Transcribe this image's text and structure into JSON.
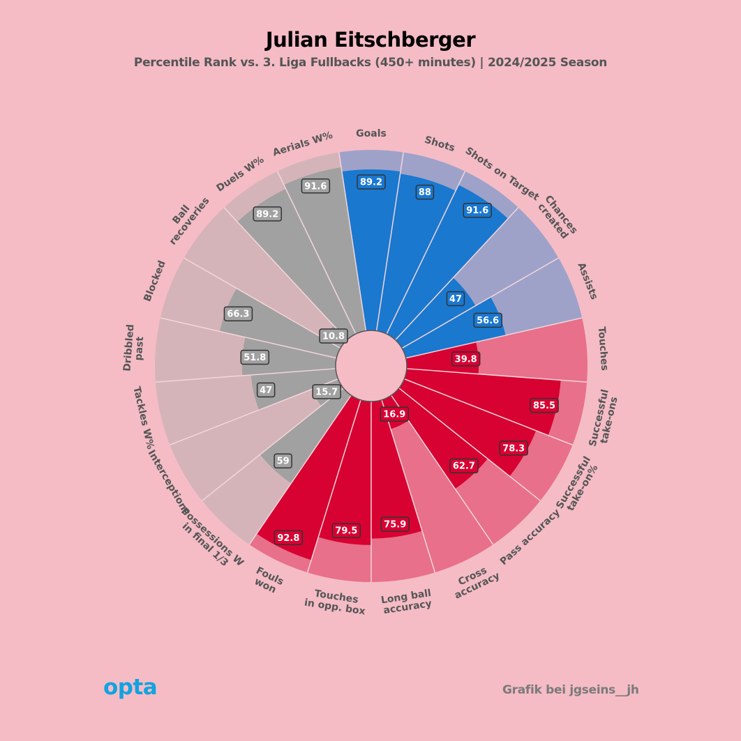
{
  "header": {
    "title": "Julian Eitschberger",
    "subtitle": "Percentile Rank vs. 3. Liga Fullbacks (450+ minutes) | 2024/2025 Season"
  },
  "footer": {
    "logo_text": "opta",
    "credit": "Grafik bei jgseins__jh"
  },
  "colors": {
    "background": "#f5bcc6",
    "attacking_bar": "#1a78cf",
    "attacking_bg": "#9ea2c9",
    "possession_bar": "#d70232",
    "possession_bg": "#e8708a",
    "defending_bar": "#a1a1a1",
    "defending_bg": "#d5b4b9"
  },
  "chart_data": {
    "type": "polar_bar",
    "title": "Julian Eitschberger",
    "subtitle": "Percentile Rank vs. 3. Liga Fullbacks (450+ minutes) | 2024/2025 Season",
    "rlim": [
      0,
      100
    ],
    "categories": [
      {
        "label": [
          "Goals"
        ],
        "value": 89.2,
        "group": "attacking"
      },
      {
        "label": [
          "Shots"
        ],
        "value": 88,
        "group": "attacking"
      },
      {
        "label": [
          "Shots on Target"
        ],
        "value": 91.6,
        "group": "attacking"
      },
      {
        "label": [
          "Chances",
          "created"
        ],
        "value": 47,
        "group": "attacking"
      },
      {
        "label": [
          "Assists"
        ],
        "value": 56.6,
        "group": "attacking"
      },
      {
        "label": [
          "Touches"
        ],
        "value": 39.8,
        "group": "possession"
      },
      {
        "label": [
          "Successful",
          "take-ons"
        ],
        "value": 85.5,
        "group": "possession"
      },
      {
        "label": [
          "Successful",
          "take-on%"
        ],
        "value": 78.3,
        "group": "possession"
      },
      {
        "label": [
          "Pass accuracy"
        ],
        "value": 62.7,
        "group": "possession"
      },
      {
        "label": [
          "Cross",
          "accuracy"
        ],
        "value": 16.9,
        "group": "possession"
      },
      {
        "label": [
          "Long ball",
          "accuracy"
        ],
        "value": 75.9,
        "group": "possession"
      },
      {
        "label": [
          "Touches",
          "in opp. box"
        ],
        "value": 79.5,
        "group": "possession"
      },
      {
        "label": [
          "Fouls",
          "won"
        ],
        "value": 92.8,
        "group": "possession"
      },
      {
        "label": [
          "Possessions W",
          "in final 1/3"
        ],
        "value": 59,
        "group": "defending"
      },
      {
        "label": [
          "Interceptions"
        ],
        "value": 15.7,
        "group": "defending"
      },
      {
        "label": [
          "Tackles W%"
        ],
        "value": 47,
        "group": "defending"
      },
      {
        "label": [
          "Dribbled",
          "past"
        ],
        "value": 51.8,
        "group": "defending"
      },
      {
        "label": [
          "Blocked"
        ],
        "value": 66.3,
        "group": "defending"
      },
      {
        "label": [
          "Ball",
          "recoveries"
        ],
        "value": 10.8,
        "group": "defending"
      },
      {
        "label": [
          "Duels W%"
        ],
        "value": 89.2,
        "group": "defending"
      },
      {
        "label": [
          "Aerials W%"
        ],
        "value": 91.6,
        "group": "defending"
      }
    ]
  }
}
